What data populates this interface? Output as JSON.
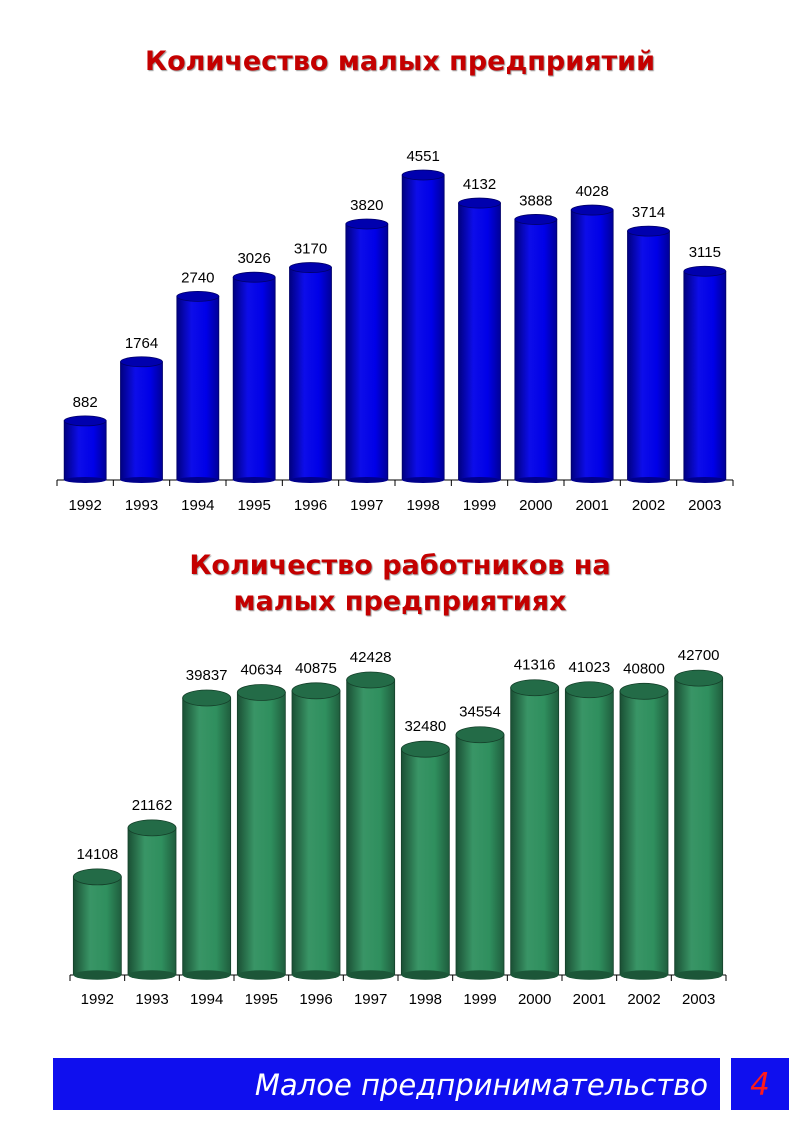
{
  "chart_data": [
    {
      "type": "bar",
      "title": "Количество малых предприятий",
      "categories": [
        "1992",
        "1993",
        "1994",
        "1995",
        "1996",
        "1997",
        "1998",
        "1999",
        "2000",
        "2001",
        "2002",
        "2003"
      ],
      "values": [
        882,
        1764,
        2740,
        3026,
        3170,
        3820,
        4551,
        4132,
        3888,
        4028,
        3714,
        3115
      ],
      "labels": [
        "882",
        "1764",
        "2740",
        "3026",
        "3170",
        "3820",
        "4551",
        "4132",
        "3888",
        "4028",
        "3714",
        "3115"
      ],
      "ylim": [
        0,
        4551
      ],
      "grid": false,
      "color": "#0000e8"
    },
    {
      "type": "bar",
      "title": "Количество работников на малых предприятиях",
      "categories": [
        "1992",
        "1993",
        "1994",
        "1995",
        "1996",
        "1997",
        "1998",
        "1999",
        "2000",
        "2001",
        "2002",
        "2003"
      ],
      "values": [
        14108,
        21162,
        39837,
        40634,
        40875,
        42428,
        32480,
        34554,
        41316,
        41023,
        40800,
        42700
      ],
      "labels": [
        "14108",
        "21162",
        "39837",
        "40634",
        "40875",
        "42428",
        "32480",
        "34554",
        "41316",
        "41023",
        "40800",
        "42700"
      ],
      "ylim": [
        0,
        42428
      ],
      "grid": false,
      "color": "#2f8f5e"
    }
  ],
  "footer": {
    "text": "Малое предпринимательство",
    "page_number": "4"
  },
  "colors": {
    "title": "#c40000",
    "footer_bg": "#0f0fee",
    "footer_text": "#ffffff",
    "page_number": "#ff1a1a"
  }
}
